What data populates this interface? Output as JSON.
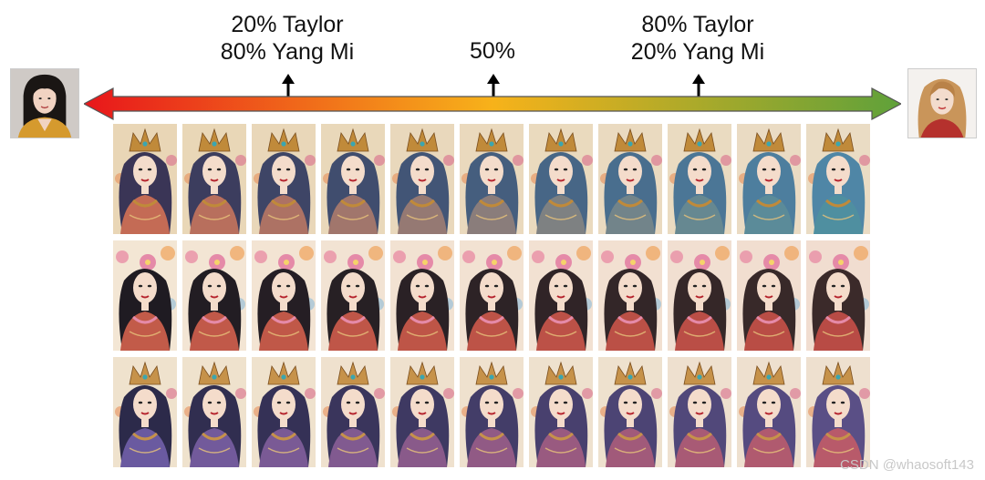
{
  "labels": {
    "left": {
      "line1": "20% Taylor",
      "line2": "80% Yang Mi"
    },
    "mid": {
      "line1": "50%"
    },
    "right": {
      "line1": "80% Taylor",
      "line2": "20% Yang Mi"
    }
  },
  "colors": {
    "arrow_start": "#e8161b",
    "arrow_mid": "#f7b21a",
    "arrow_end": "#5fa13a",
    "background": "#ffffff"
  },
  "grid": {
    "rows": 3,
    "columns": 11,
    "row_styles": [
      "crowned-blue-hair",
      "floral-hair-profile",
      "crowned-dark-hair"
    ]
  },
  "watermark": "CSDN @whaosoft143"
}
